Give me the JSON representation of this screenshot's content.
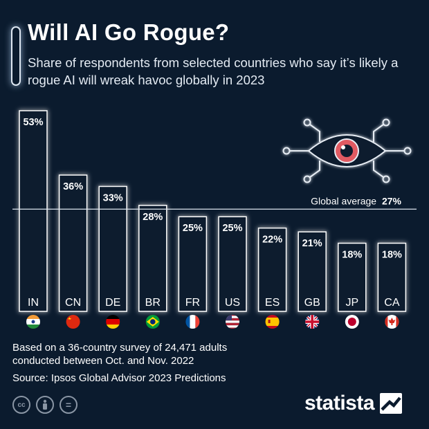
{
  "header": {
    "title": "Will AI Go Rogue?",
    "subtitle": "Share of respondents from selected countries who say it’s likely a rogue AI will wreak havoc globally in 2023"
  },
  "chart_data": {
    "type": "bar",
    "categories": [
      "IN",
      "CN",
      "DE",
      "BR",
      "FR",
      "US",
      "ES",
      "GB",
      "JP",
      "CA"
    ],
    "values": [
      53,
      36,
      33,
      28,
      25,
      25,
      22,
      21,
      18,
      18
    ],
    "value_labels": [
      "53%",
      "36%",
      "33%",
      "28%",
      "25%",
      "25%",
      "22%",
      "21%",
      "18%",
      "18%"
    ],
    "flag_icons": [
      "flag-india-icon",
      "flag-china-icon",
      "flag-germany-icon",
      "flag-brazil-icon",
      "flag-france-icon",
      "flag-usa-icon",
      "flag-spain-icon",
      "flag-uk-icon",
      "flag-japan-icon",
      "flag-canada-icon"
    ],
    "reference_line": {
      "label": "Global average",
      "value_label": "27%",
      "value": 27
    },
    "ylim": [
      0,
      53
    ],
    "grid": false,
    "colors": {
      "background": "#0b1b2e",
      "bar_fill": "#0b1b2e",
      "bar_outline": "#ffffff",
      "glow": "#bcd4ee",
      "eye_iris": "#e05a62"
    }
  },
  "footer": {
    "note_line1": "Based on a 36-country survey of 24,471 adults",
    "note_line2": "conducted between Oct. and Nov. 2022",
    "source": "Source: Ipsos Global Advisor 2023 Predictions",
    "license_icons": [
      "cc-icon",
      "by-icon",
      "nd-icon"
    ],
    "license_glyphs": [
      "cc",
      "",
      "="
    ],
    "brand": "statista"
  }
}
